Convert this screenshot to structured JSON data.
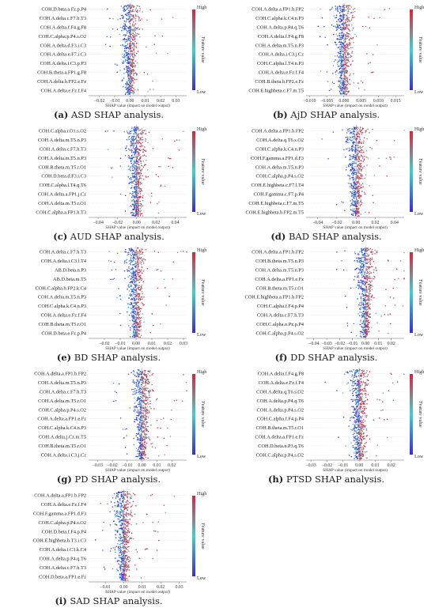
{
  "figure": {
    "colors": {
      "low": "#3d2bd6",
      "mid": "#3fd0cc",
      "high": "#e0213c"
    },
    "colorbar": {
      "high_label": "High",
      "low_label": "Low",
      "title": "Feature value"
    },
    "xlabel": "SHAP value (impact on model output)"
  },
  "chart_data": [
    {
      "type": "scatter",
      "subtype": "shap-beeswarm",
      "caption_letter": "(a)",
      "caption_text": " ASD SHAP analysis.",
      "features": [
        "COH.D.beta.a.Fz.p.P4",
        "COH.A.delta.c.F7.b.T3",
        "COH.A.delta.f.F4.g.F8",
        "COH.C.alpha.p.P4.s.O2",
        "COH.A.delta.d.F3.i.C3",
        "COH.A.delta.e.F7.i.C3",
        "COH.A.delta.i.C3.p.P3",
        "COH.B.theta.a.FP1.g.F8",
        "COH.A.delta.b.FP2.e.Fz",
        "COH.A.delta.e.Fz.f.F4"
      ],
      "xticks": [
        -0.02,
        -0.01,
        0.0,
        0.01,
        0.02,
        0.03
      ],
      "xtick_labels": [
        "−0.02",
        "−0.01",
        "0.00",
        "0.01",
        "0.02",
        "0.03"
      ],
      "xlim": [
        -0.027,
        0.037
      ]
    },
    {
      "type": "scatter",
      "subtype": "shap-beeswarm",
      "caption_letter": "(b)",
      "caption_text": " AjD SHAP analysis.",
      "features": [
        "COH.A.delta.a.FP1.b.FP2",
        "COH.C.alpha.k.C4.n.P3",
        "COH.A.delta.p.P4.q.T6",
        "COH.A.delta.f.F4.g.F8",
        "COH.A.delta.m.T5.n.P3",
        "COH.A.delta.i.C3.j.Cz",
        "COH.C.alpha.l.T4.n.P3",
        "COH.A.delta.e.Fz.f.F4",
        "COH.B.theta.b.FP2.e.Fz",
        "COH.E.highbeta.c.F7.m.T5"
      ],
      "xticks": [
        -0.01,
        -0.005,
        0.0,
        0.005,
        0.01,
        0.015
      ],
      "xtick_labels": [
        "−0.010",
        "−0.005",
        "0.000",
        "0.005",
        "0.010",
        "0.015"
      ],
      "xlim": [
        -0.011,
        0.0175
      ]
    },
    {
      "type": "scatter",
      "subtype": "shap-beeswarm",
      "caption_letter": "(c)",
      "caption_text": " AUD SHAP analysis.",
      "features": [
        "COH.C.alpha.r.O1.s.O2",
        "COH.A.delta.m.T5.n.P3",
        "COH.A.delta.c.F7.h.T3",
        "COH.A.delta.m.T5.n.P3",
        "COH.B.theta.m.T5.r.O1",
        "COH.D.beta.d.F3.i.C3",
        "COH.C.alpha.l.T4.q.T6",
        "COH.A.delta.a.FP1.j.Cz",
        "COH.A.delta.m.T5.r.O1",
        "COH.C.alpha.a.FP1.h.T3"
      ],
      "xticks": [
        -0.04,
        -0.02,
        0.0,
        0.02,
        0.04
      ],
      "xtick_labels": [
        "−0.04",
        "−0.02",
        "0.00",
        "0.02",
        "0.04"
      ],
      "xlim": [
        -0.05,
        0.052
      ]
    },
    {
      "type": "scatter",
      "subtype": "shap-beeswarm",
      "caption_letter": "(d)",
      "caption_text": " BAD SHAP analysis.",
      "features": [
        "COH.A.delta.a.FP1.b.FP2",
        "COH.A.delta.q.T6.s.O2",
        "COH.C.alpha.k.C4.n.P3",
        "COH.F.gamma.a.FP1.d.F3",
        "COH.A.delta.m.T5.n.P3",
        "COH.C.alpha.p.P4.s.O2",
        "COH.E.highbeta.c.F7.l.T4",
        "COH.F.gamma.c.F7.p.P4",
        "COH.E.highbeta.c.F7.m.T5",
        "COH.E.highbeta.b.FP2.m.T5"
      ],
      "xticks": [
        -0.04,
        -0.02,
        0.0,
        0.02,
        0.04
      ],
      "xtick_labels": [
        "−0.04",
        "−0.02",
        "0.00",
        "0.02",
        "0.04"
      ],
      "xlim": [
        -0.052,
        0.05
      ]
    },
    {
      "type": "scatter",
      "subtype": "shap-beeswarm",
      "caption_letter": "(e)",
      "caption_text": " BD SHAP analysis.",
      "features": [
        "COH.A.delta.c.F7.h.T3",
        "COH.A.delta.i.C3.l.T4",
        "AB.D.beta.n.P3",
        "AB.D.beta.m.T5",
        "COH.C.alpha.b.FP2.k.C4",
        "COH.A.delta.m.T5.n.P3",
        "COH.C.alpha.k.C4.n.P3",
        "COH.A.delta.e.Fz.f.F4",
        "COH.B.theta.m.T5.r.O1",
        "COH.D.beta.e.Fz.p.P4"
      ],
      "xticks": [
        -0.02,
        -0.01,
        0.0,
        0.01,
        0.02,
        0.03
      ],
      "xtick_labels": [
        "−0.02",
        "−0.01",
        "0.00",
        "0.01",
        "0.02",
        "0.03"
      ],
      "xlim": [
        -0.03,
        0.032
      ]
    },
    {
      "type": "scatter",
      "subtype": "shap-beeswarm",
      "caption_letter": "(f)",
      "caption_text": " DD SHAP analysis.",
      "features": [
        "COH.A.delta.a.FP1.b.FP2",
        "COH.B.theta.m.T5.n.P3",
        "COH.A.delta.m.T5.n.P3",
        "COH.A.delta.a.FP1.e.Fz",
        "COH.B.theta.m.T5.r.O1",
        "COH.E.highbeta.a.FP1.b.FP2",
        "COH.C.alpha.f.F4.p.P4",
        "COH.A.delta.c.F7.h.T3",
        "COH.C.alpha.o.Pz.p.P4",
        "COH.C.alpha.p.P4.s.O2"
      ],
      "xticks": [
        -0.04,
        -0.03,
        -0.02,
        -0.01,
        0.0,
        0.01,
        0.02
      ],
      "xtick_labels": [
        "−0.04",
        "−0.03",
        "−0.02",
        "−0.01",
        "0.00",
        "0.01",
        "0.02"
      ],
      "xlim": [
        -0.046,
        0.03
      ]
    },
    {
      "type": "scatter",
      "subtype": "shap-beeswarm",
      "caption_letter": "(g)",
      "caption_text": " PD SHAP analysis.",
      "features": [
        "COH.A.delta.a.FP1.b.FP2",
        "COH.A.delta.m.T5.n.P3",
        "COH.A.delta.c.F7.h.T3",
        "COH.A.delta.m.T5.r.O1",
        "COH.C.alpha.p.P4.s.O2",
        "COH.A.delta.a.FP1.e.Fz",
        "COH.C.alpha.k.C4.n.P3",
        "COH.A.delta.j.Cz.m.T5",
        "COH.B.theta.m.T5.r.O1",
        "COH.A.delta.i.C3.j.Cz"
      ],
      "xticks": [
        -0.03,
        -0.02,
        -0.01,
        0.0,
        0.01,
        0.02
      ],
      "xtick_labels": [
        "−0.03",
        "−0.02",
        "−0.01",
        "0.00",
        "0.01",
        "0.02"
      ],
      "xlim": [
        -0.036,
        0.03
      ]
    },
    {
      "type": "scatter",
      "subtype": "shap-beeswarm",
      "caption_letter": "(h)",
      "caption_text": " PTSD SHAP analysis.",
      "features": [
        "COH.A.delta.f.F4.g.F8",
        "COH.A.delta.e.Fz.f.F4",
        "COH.A.delta.q.T6.s.O2",
        "COH.A.delta.p.P4.q.T6",
        "COH.A.delta.p.P4.s.O2",
        "COH.C.alpha.f.F4.p.P4",
        "COH.B.theta.m.T5.r.O1",
        "COH.A.delta.a.FP1.e.Fz",
        "COH.D.beta.n.P3.q.T6",
        "COH.C.alpha.p.P4.s.O2"
      ],
      "xticks": [
        -0.03,
        -0.02,
        -0.01,
        0.0,
        0.01,
        0.02
      ],
      "xtick_labels": [
        "−0.03",
        "−0.02",
        "−0.01",
        "0.00",
        "0.01",
        "0.02"
      ],
      "xlim": [
        -0.033,
        0.028
      ]
    },
    {
      "type": "scatter",
      "subtype": "shap-beeswarm",
      "caption_letter": "(i)",
      "caption_text": " SAD SHAP analysis.",
      "features": [
        "COH.A.delta.a.FP1.b.FP2",
        "COH.A.delta.e.Fz.f.F4",
        "COH.F.gamma.a.FP1.d.F3",
        "COH.C.alpha.p.P4.s.O2",
        "COH.D.beta.f.F4.p.P4",
        "COH.E.highbeta.h.T3.i.C3",
        "COH.A.delta.i.C3.k.C4",
        "COH.A.delta.p.P4.q.T6",
        "COH.A.delta.c.F7.h.T3",
        "COH.D.beta.a.FP1.e.Fz"
      ],
      "xticks": [
        -0.01,
        0.0,
        0.01,
        0.02,
        0.03
      ],
      "xtick_labels": [
        "−0.01",
        "0.00",
        "0.01",
        "0.02",
        "0.03"
      ],
      "xlim": [
        -0.019,
        0.034
      ]
    }
  ]
}
